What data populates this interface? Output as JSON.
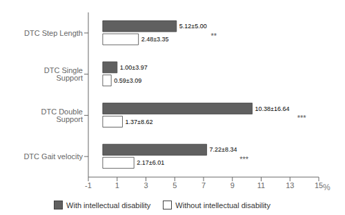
{
  "chart_data": {
    "type": "bar",
    "orientation": "horizontal",
    "categories": [
      "DTC Step Length",
      "DTC Single Support",
      "DTC Double Support",
      "DTC Gait velocity"
    ],
    "xlim": [
      -1,
      15
    ],
    "xticks": [
      -1,
      1,
      3,
      5,
      7,
      9,
      11,
      13,
      15
    ],
    "xlabel": "%",
    "grid": false,
    "data_labels": true,
    "legend": "bottom",
    "series": [
      {
        "name": "With intellectual disability",
        "color": "#606060",
        "values": [
          5.12,
          1.0,
          10.38,
          7.22
        ],
        "value_labels": [
          "5.12±5.00",
          "1.00±3.97",
          "10.38±16.64",
          "7.22±8.34"
        ]
      },
      {
        "name": "Without intellectual disability",
        "color": "#ffffff",
        "values": [
          2.48,
          0.59,
          1.37,
          2.17
        ],
        "value_labels": [
          "2.48±3.35",
          "0.59±3.09",
          "1.37±8.62",
          "2.17±6.01"
        ]
      }
    ],
    "annotations": [
      {
        "text": "**",
        "category": "DTC Step Length",
        "x": 7.5
      },
      {
        "text": "***",
        "category": "DTC Double Support",
        "x": 13.5
      },
      {
        "text": "***",
        "category": "DTC Gait velocity",
        "x": 9.5
      }
    ]
  }
}
